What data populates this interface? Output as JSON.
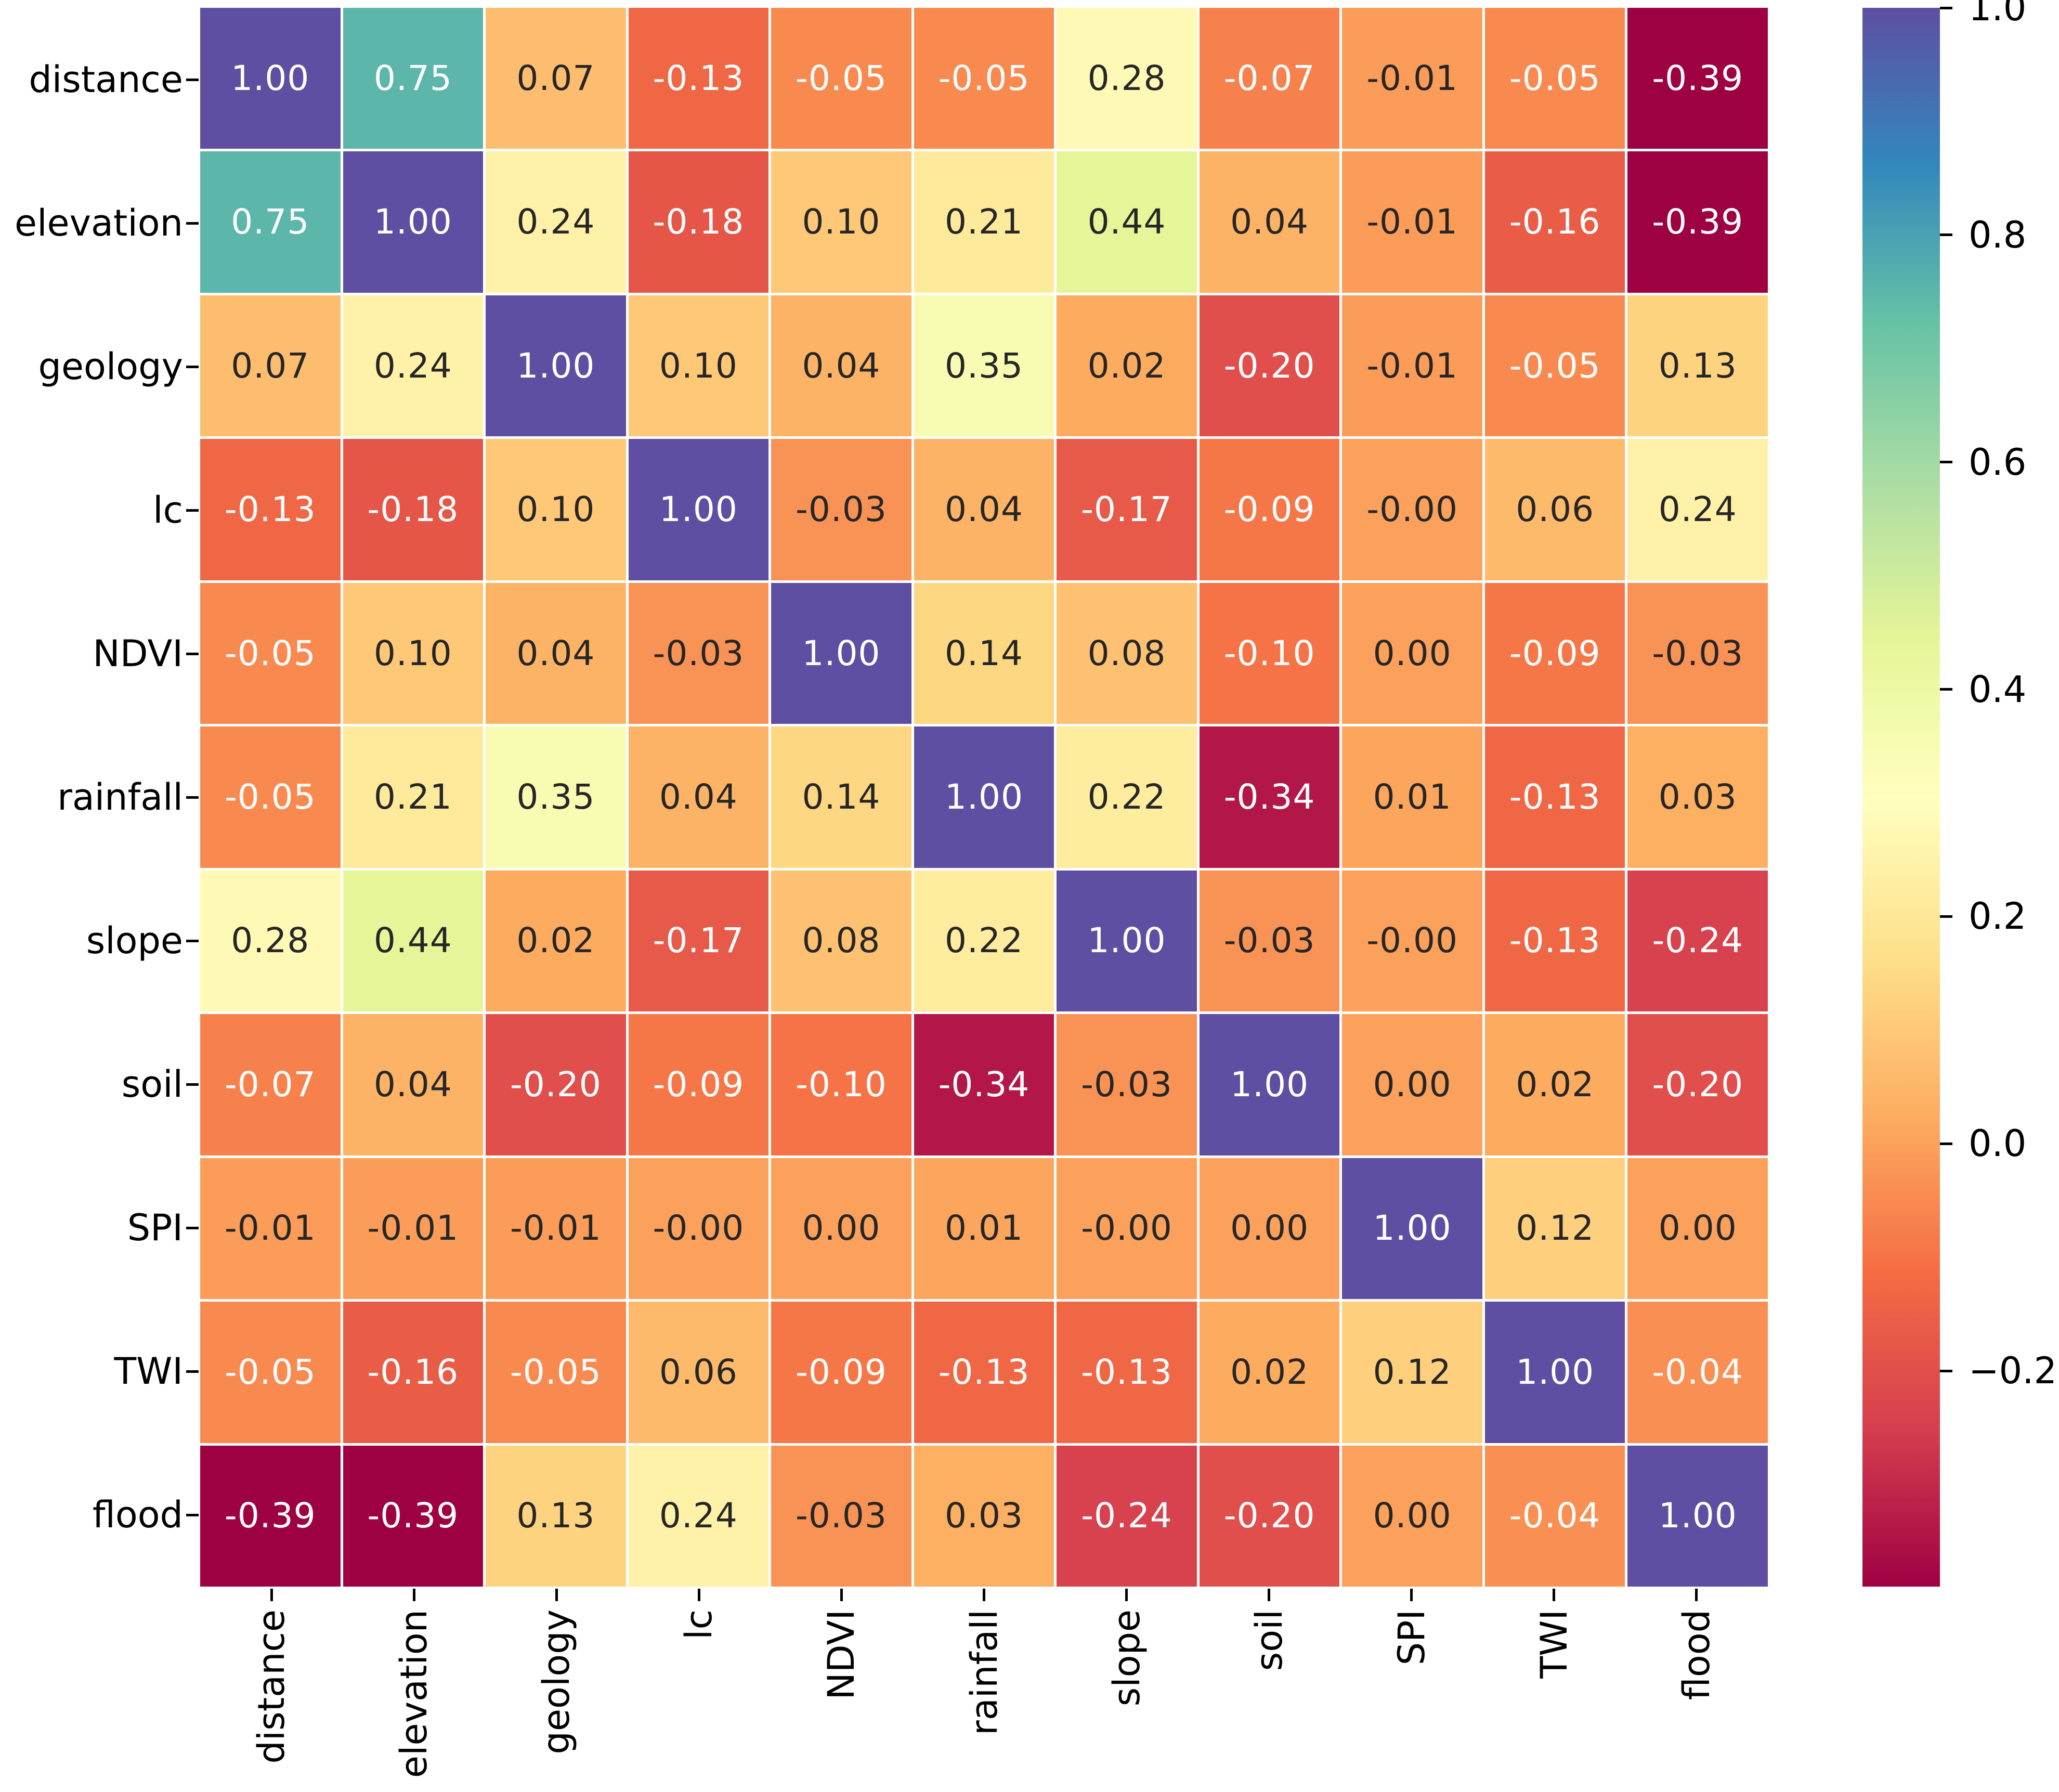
{
  "chart_data": {
    "type": "heatmap",
    "title": "",
    "xlabel": "",
    "ylabel": "",
    "categories": [
      "distance",
      "elevation",
      "geology",
      "lc",
      "NDVI",
      "rainfall",
      "slope",
      "soil",
      "SPI",
      "TWI",
      "flood"
    ],
    "matrix_display": [
      [
        "1.00",
        "0.75",
        "0.07",
        "-0.13",
        "-0.05",
        "-0.05",
        "0.28",
        "-0.07",
        "-0.01",
        "-0.05",
        "-0.39"
      ],
      [
        "0.75",
        "1.00",
        "0.24",
        "-0.18",
        "0.10",
        "0.21",
        "0.44",
        "0.04",
        "-0.01",
        "-0.16",
        "-0.39"
      ],
      [
        "0.07",
        "0.24",
        "1.00",
        "0.10",
        "0.04",
        "0.35",
        "0.02",
        "-0.20",
        "-0.01",
        "-0.05",
        "0.13"
      ],
      [
        "-0.13",
        "-0.18",
        "0.10",
        "1.00",
        "-0.03",
        "0.04",
        "-0.17",
        "-0.09",
        "-0.00",
        "0.06",
        "0.24"
      ],
      [
        "-0.05",
        "0.10",
        "0.04",
        "-0.03",
        "1.00",
        "0.14",
        "0.08",
        "-0.10",
        "0.00",
        "-0.09",
        "-0.03"
      ],
      [
        "-0.05",
        "0.21",
        "0.35",
        "0.04",
        "0.14",
        "1.00",
        "0.22",
        "-0.34",
        "0.01",
        "-0.13",
        "0.03"
      ],
      [
        "0.28",
        "0.44",
        "0.02",
        "-0.17",
        "0.08",
        "0.22",
        "1.00",
        "-0.03",
        "-0.00",
        "-0.13",
        "-0.24"
      ],
      [
        "-0.07",
        "0.04",
        "-0.20",
        "-0.09",
        "-0.10",
        "-0.34",
        "-0.03",
        "1.00",
        "0.00",
        "0.02",
        "-0.20"
      ],
      [
        "-0.01",
        "-0.01",
        "-0.01",
        "-0.00",
        "0.00",
        "0.01",
        "-0.00",
        "0.00",
        "1.00",
        "0.12",
        "0.00"
      ],
      [
        "-0.05",
        "-0.16",
        "-0.05",
        "0.06",
        "-0.09",
        "-0.13",
        "-0.13",
        "0.02",
        "0.12",
        "1.00",
        "-0.04"
      ],
      [
        "-0.39",
        "-0.39",
        "0.13",
        "0.24",
        "-0.03",
        "0.03",
        "-0.24",
        "-0.20",
        "0.00",
        "-0.04",
        "1.00"
      ]
    ],
    "vmin": -0.39,
    "vmax": 1.0,
    "colormap": "Spectral",
    "colormap_colors": [
      "#9e0142",
      "#d53e4f",
      "#f46d43",
      "#fdae61",
      "#fee08b",
      "#ffffbf",
      "#e6f598",
      "#abdda4",
      "#66c2a5",
      "#3288bd",
      "#5e4fa2"
    ],
    "colorbar_ticks": [
      "1.0",
      "0.8",
      "0.6",
      "0.4",
      "0.2",
      "0.0",
      "−0.2"
    ],
    "colorbar_tick_values": [
      1.0,
      0.8,
      0.6,
      0.4,
      0.2,
      0.0,
      -0.2
    ],
    "legend_position": "right-colorbar",
    "grid_line_color": "#ffffff",
    "annotation_text_dark": "#262626",
    "annotation_text_light": "#ffffff"
  }
}
